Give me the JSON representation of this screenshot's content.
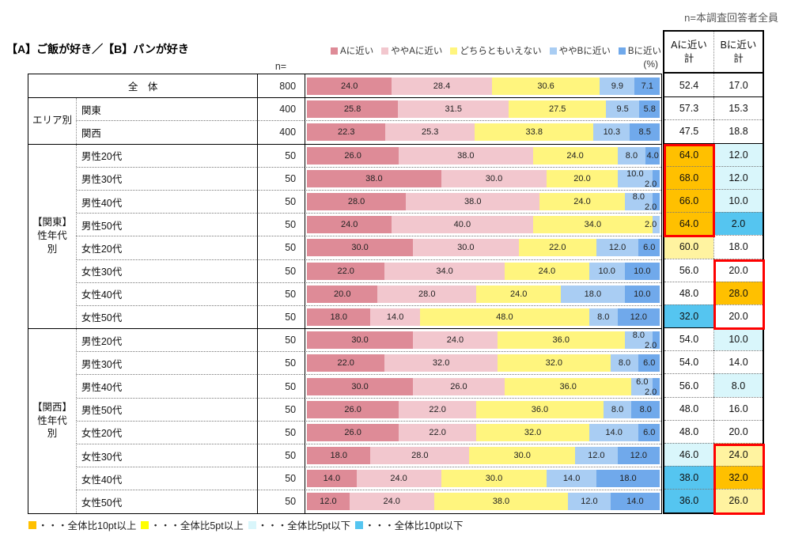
{
  "note_top_right": "n=本調査回答者全員",
  "title": "【A】ご飯が好き／【B】パンが好き",
  "n_label": "n=",
  "percent_label": "(%)",
  "legend": [
    {
      "label": "Aに近い",
      "color": "#DE8B97"
    },
    {
      "label": "ややAに近い",
      "color": "#F2C7CE"
    },
    {
      "label": "どちらともいえない",
      "color": "#FFF57E"
    },
    {
      "label": "ややBに近い",
      "color": "#A9CDF3"
    },
    {
      "label": "Bに近い",
      "color": "#70A9EB"
    }
  ],
  "summary_headers": [
    {
      "line1": "Aに近い",
      "line2": "計"
    },
    {
      "line1": "Bに近い",
      "line2": "計"
    }
  ],
  "bottom_legend": [
    {
      "label": "・・・全体比10pt以上",
      "color": "#FFC000"
    },
    {
      "label": "・・・全体比5pt以上",
      "color": "#FFFF00"
    },
    {
      "label": "・・・全体比5pt以下",
      "color": "#D9F6FB"
    },
    {
      "label": "・・・全体比10pt以下",
      "color": "#55C5F0"
    }
  ],
  "colors": {
    "segments": [
      "#DE8B97",
      "#F2C7CE",
      "#FFF57E",
      "#A9CDF3",
      "#70A9EB"
    ],
    "cell_fills": {
      "orange": "#FFC000",
      "yellow": "#FFF3A0",
      "cyan": "#D9F6FB",
      "blue": "#55C5F0",
      "none": "#FFFFFF"
    },
    "highlight_border": "#FE0000"
  },
  "chart_data": {
    "type": "bar",
    "stacked": true,
    "orientation": "horizontal",
    "unit": "%",
    "xlim": [
      0,
      100
    ],
    "series_names": [
      "Aに近い",
      "ややAに近い",
      "どちらともいえない",
      "ややBに近い",
      "Bに近い"
    ],
    "groups": [
      {
        "label": "エリア別",
        "start_row": 1,
        "row_count": 2
      },
      {
        "label": "【関東】\n性年代\n別",
        "start_row": 3,
        "row_count": 8
      },
      {
        "label": "【関西】\n性年代\n別",
        "start_row": 11,
        "row_count": 8
      }
    ],
    "rows": [
      {
        "label": "全　体",
        "span_label": true,
        "n": 800,
        "values": [
          24.0,
          28.4,
          30.6,
          9.9,
          7.1
        ],
        "a_total": 52.4,
        "b_total": 17.0,
        "a_fill": "none",
        "b_fill": "none"
      },
      {
        "label": "関東",
        "span_label": false,
        "n": 400,
        "values": [
          25.8,
          31.5,
          27.5,
          9.5,
          5.8
        ],
        "a_total": 57.3,
        "b_total": 15.3,
        "a_fill": "none",
        "b_fill": "none"
      },
      {
        "label": "関西",
        "span_label": false,
        "n": 400,
        "values": [
          22.3,
          25.3,
          33.8,
          10.3,
          8.5
        ],
        "a_total": 47.5,
        "b_total": 18.8,
        "a_fill": "none",
        "b_fill": "none"
      },
      {
        "label": "男性20代",
        "span_label": false,
        "n": 50,
        "values": [
          26.0,
          38.0,
          24.0,
          8.0,
          4.0
        ],
        "a_total": 64.0,
        "b_total": 12.0,
        "a_fill": "orange",
        "b_fill": "cyan"
      },
      {
        "label": "男性30代",
        "span_label": false,
        "n": 50,
        "values": [
          38.0,
          30.0,
          20.0,
          10.0,
          2.0
        ],
        "a_total": 68.0,
        "b_total": 12.0,
        "a_fill": "orange",
        "b_fill": "cyan"
      },
      {
        "label": "男性40代",
        "span_label": false,
        "n": 50,
        "values": [
          28.0,
          38.0,
          24.0,
          8.0,
          2.0
        ],
        "a_total": 66.0,
        "b_total": 10.0,
        "a_fill": "orange",
        "b_fill": "cyan"
      },
      {
        "label": "男性50代",
        "span_label": false,
        "n": 50,
        "values": [
          24.0,
          40.0,
          34.0,
          2.0,
          0.0
        ],
        "a_total": 64.0,
        "b_total": 2.0,
        "a_fill": "orange",
        "b_fill": "blue"
      },
      {
        "label": "女性20代",
        "span_label": false,
        "n": 50,
        "values": [
          30.0,
          30.0,
          22.0,
          12.0,
          6.0
        ],
        "a_total": 60.0,
        "b_total": 18.0,
        "a_fill": "yellow",
        "b_fill": "none"
      },
      {
        "label": "女性30代",
        "span_label": false,
        "n": 50,
        "values": [
          22.0,
          34.0,
          24.0,
          10.0,
          10.0
        ],
        "a_total": 56.0,
        "b_total": 20.0,
        "a_fill": "none",
        "b_fill": "none"
      },
      {
        "label": "女性40代",
        "span_label": false,
        "n": 50,
        "values": [
          20.0,
          28.0,
          24.0,
          18.0,
          10.0
        ],
        "a_total": 48.0,
        "b_total": 28.0,
        "a_fill": "none",
        "b_fill": "orange"
      },
      {
        "label": "女性50代",
        "span_label": false,
        "n": 50,
        "values": [
          18.0,
          14.0,
          48.0,
          8.0,
          12.0
        ],
        "a_total": 32.0,
        "b_total": 20.0,
        "a_fill": "blue",
        "b_fill": "none"
      },
      {
        "label": "男性20代",
        "span_label": false,
        "n": 50,
        "values": [
          30.0,
          24.0,
          36.0,
          8.0,
          2.0
        ],
        "a_total": 54.0,
        "b_total": 10.0,
        "a_fill": "none",
        "b_fill": "cyan"
      },
      {
        "label": "男性30代",
        "span_label": false,
        "n": 50,
        "values": [
          22.0,
          32.0,
          32.0,
          8.0,
          6.0
        ],
        "a_total": 54.0,
        "b_total": 14.0,
        "a_fill": "none",
        "b_fill": "none"
      },
      {
        "label": "男性40代",
        "span_label": false,
        "n": 50,
        "values": [
          30.0,
          26.0,
          36.0,
          6.0,
          2.0
        ],
        "a_total": 56.0,
        "b_total": 8.0,
        "a_fill": "none",
        "b_fill": "cyan"
      },
      {
        "label": "男性50代",
        "span_label": false,
        "n": 50,
        "values": [
          26.0,
          22.0,
          36.0,
          8.0,
          8.0
        ],
        "a_total": 48.0,
        "b_total": 16.0,
        "a_fill": "none",
        "b_fill": "none"
      },
      {
        "label": "女性20代",
        "span_label": false,
        "n": 50,
        "values": [
          26.0,
          22.0,
          32.0,
          14.0,
          6.0
        ],
        "a_total": 48.0,
        "b_total": 20.0,
        "a_fill": "none",
        "b_fill": "none"
      },
      {
        "label": "女性30代",
        "span_label": false,
        "n": 50,
        "values": [
          18.0,
          28.0,
          30.0,
          12.0,
          12.0
        ],
        "a_total": 46.0,
        "b_total": 24.0,
        "a_fill": "cyan",
        "b_fill": "yellow"
      },
      {
        "label": "女性40代",
        "span_label": false,
        "n": 50,
        "values": [
          14.0,
          24.0,
          30.0,
          14.0,
          18.0
        ],
        "a_total": 38.0,
        "b_total": 32.0,
        "a_fill": "blue",
        "b_fill": "orange"
      },
      {
        "label": "女性50代",
        "span_label": false,
        "n": 50,
        "values": [
          12.0,
          24.0,
          38.0,
          12.0,
          14.0
        ],
        "a_total": 36.0,
        "b_total": 26.0,
        "a_fill": "blue",
        "b_fill": "yellow"
      }
    ],
    "highlight_boxes": [
      {
        "column": "a_total",
        "start_row": 3,
        "row_count": 4
      },
      {
        "column": "b_total",
        "start_row": 8,
        "row_count": 3
      },
      {
        "column": "b_total",
        "start_row": 16,
        "row_count": 3
      }
    ]
  }
}
